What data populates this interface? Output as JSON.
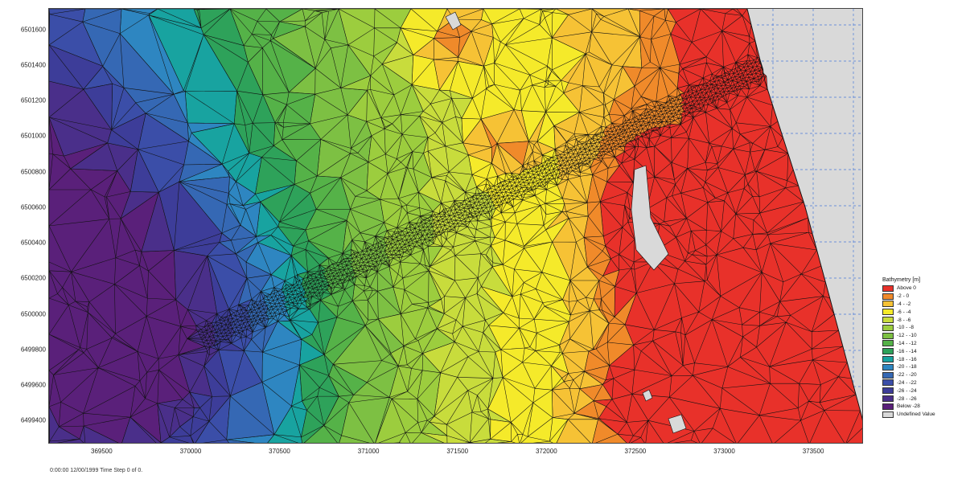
{
  "map": {
    "y_axis_labels": [
      "6501600",
      "6501400",
      "6501200",
      "6501000",
      "6500800",
      "6500600",
      "6500400",
      "6500200",
      "6500000",
      "6499800",
      "6499600",
      "6499400"
    ],
    "x_axis_labels": [
      "369500",
      "370000",
      "370500",
      "371000",
      "371500",
      "372000",
      "372500",
      "373000",
      "373500"
    ],
    "x_range": [
      369200,
      373780
    ],
    "y_range": [
      6499270,
      6501720
    ]
  },
  "status": {
    "text": "0:00:00 12/00/1999  Time Step 0 of 0."
  },
  "legend": {
    "title": "Bathymetry [m]",
    "items": [
      {
        "label": "Above   0",
        "color": "#e8312a"
      },
      {
        "label": "-2 -   0",
        "color": "#f08a2a"
      },
      {
        "label": "-4 -  -2",
        "color": "#f6c235"
      },
      {
        "label": "-6 -  -4",
        "color": "#f5ea2a"
      },
      {
        "label": "-8 -  -6",
        "color": "#c8dc3c"
      },
      {
        "label": "-10 -  -8",
        "color": "#9ccd3e"
      },
      {
        "label": "-12 - -10",
        "color": "#7dc043"
      },
      {
        "label": "-14 - -12",
        "color": "#55b248"
      },
      {
        "label": "-16 - -14",
        "color": "#2ea25a"
      },
      {
        "label": "-18 - -16",
        "color": "#18a3a0"
      },
      {
        "label": "-20 - -18",
        "color": "#2e86c1"
      },
      {
        "label": "-22 - -20",
        "color": "#3568b4"
      },
      {
        "label": "-24 - -22",
        "color": "#3b4ea8"
      },
      {
        "label": "-26 - -24",
        "color": "#3d3d99"
      },
      {
        "label": "-28 - -26",
        "color": "#4a2f8a"
      },
      {
        "label": "Below  -28",
        "color": "#5a207a"
      },
      {
        "label": "Undefined Value",
        "color": "#d9d9d9"
      }
    ]
  }
}
